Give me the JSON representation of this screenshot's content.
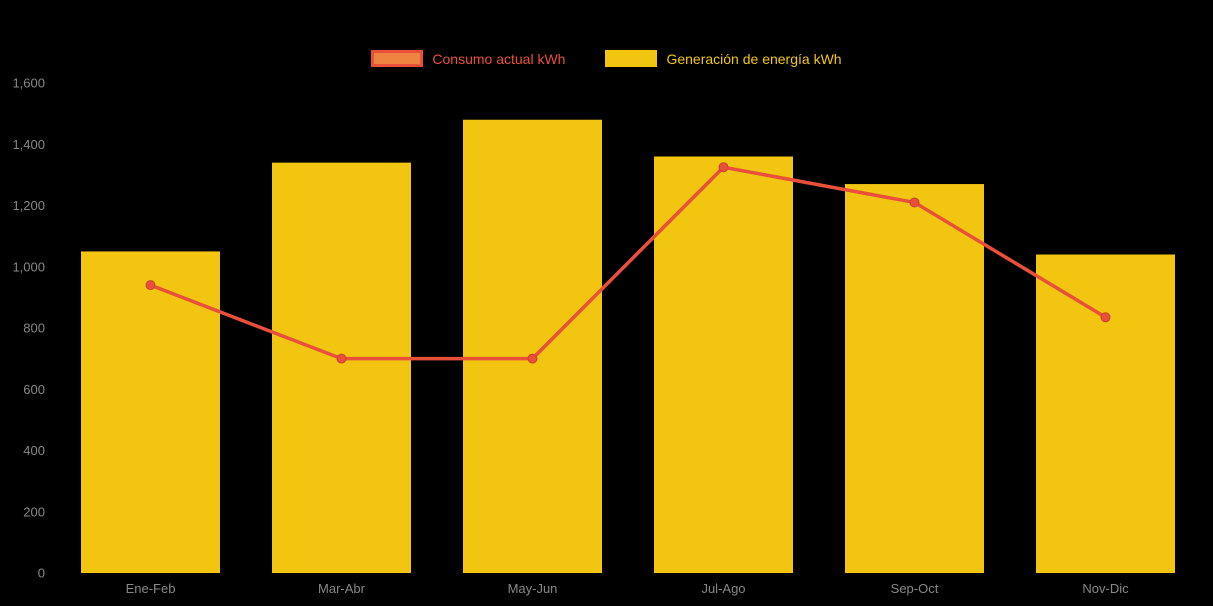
{
  "chart_data": {
    "type": "bar",
    "subtype": "bar-and-line-combo",
    "title": "",
    "xlabel": "",
    "ylabel": "",
    "categories": [
      "Ene-Feb",
      "Mar-Abr",
      "May-Jun",
      "Jul-Ago",
      "Sep-Oct",
      "Nov-Dic"
    ],
    "series": [
      {
        "name": "Consumo actual kWh",
        "type": "line",
        "color": "#e8503a",
        "marker": "circle",
        "values": [
          940,
          700,
          700,
          1325,
          1210,
          835
        ]
      },
      {
        "name": "Generación de energía kWh",
        "type": "bar",
        "color": "#f2c511",
        "values": [
          1050,
          1340,
          1480,
          1360,
          1270,
          1040
        ]
      }
    ],
    "ylim": [
      0,
      1600
    ],
    "ytick_step": 200,
    "ytick_labels": [
      "0",
      "200",
      "400",
      "600",
      "800",
      "1,000",
      "1,200",
      "1,400",
      "1,600"
    ],
    "grid": false,
    "legend_position": "top",
    "background": "#000000"
  },
  "legend": {
    "items": [
      {
        "label": "Consumo actual kWh",
        "swatch_fill": "#ef8440",
        "swatch_border": "#e8503a",
        "label_color": "#e8503a"
      },
      {
        "label": "Generación de energía kWh",
        "swatch_fill": "#f2c511",
        "swatch_border": "#f2c511",
        "label_color": "#f2c511"
      }
    ]
  },
  "colors": {
    "background": "#000000",
    "axis_label": "#878787"
  }
}
